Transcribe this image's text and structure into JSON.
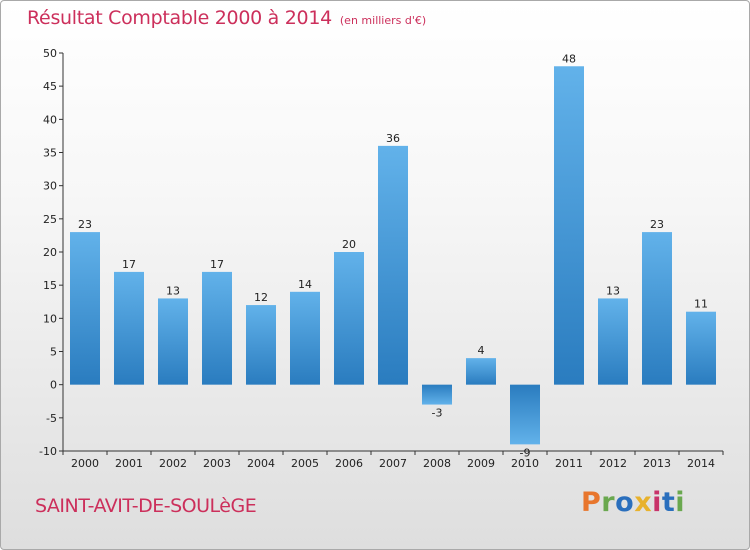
{
  "header": {
    "title": "Résultat Comptable 2000 à 2014",
    "subtitle": "(en milliers d'€)"
  },
  "footer": {
    "commune": "SAINT-AVIT-DE-SOULèGE",
    "brand": "Proxiti",
    "brand_colors": [
      "#e8762d",
      "#6aa84f",
      "#2a6fbd",
      "#e8b22d",
      "#c8336a",
      "#2a6fbd",
      "#6aa84f"
    ]
  },
  "colors": {
    "bar_light": "#62b2ea",
    "bar_dark": "#2a7cbf",
    "title": "#cc2f5b"
  },
  "chart_data": {
    "type": "bar",
    "title": "Résultat Comptable 2000 à 2014",
    "subtitle": "(en milliers d'€)",
    "categories": [
      "2000",
      "2001",
      "2002",
      "2003",
      "2004",
      "2005",
      "2006",
      "2007",
      "2008",
      "2009",
      "2010",
      "2011",
      "2012",
      "2013",
      "2014"
    ],
    "values": [
      23,
      17,
      13,
      17,
      12,
      14,
      20,
      36,
      -3,
      4,
      -9,
      48,
      13,
      23,
      11
    ],
    "ylim": [
      -10,
      50
    ],
    "yticks": [
      -10,
      -5,
      0,
      5,
      10,
      15,
      20,
      25,
      30,
      35,
      40,
      45,
      50
    ],
    "grid": false,
    "legend": "none"
  }
}
